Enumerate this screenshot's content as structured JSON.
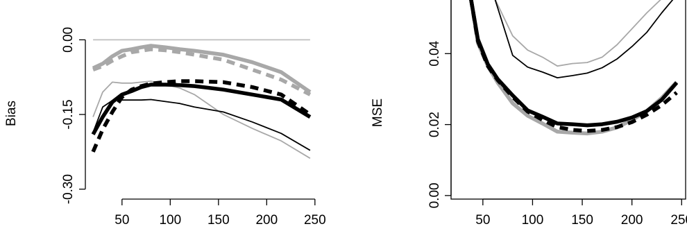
{
  "chart_data": [
    {
      "type": "line",
      "title": "",
      "xlabel": "",
      "ylabel": "Bias",
      "xlim": [
        12,
        253
      ],
      "ylim": [
        -0.32,
        0.08
      ],
      "xticks": [
        50,
        100,
        150,
        200,
        250
      ],
      "xtick_labels": [
        "50",
        "100",
        "150",
        "200",
        "250"
      ],
      "yticks": [
        -0.3,
        -0.15,
        0.0
      ],
      "ytick_labels": [
        "-0.30",
        "-0.15",
        "0.00"
      ],
      "grid": false,
      "series": [
        {
          "style": "reference",
          "color": "#bebebe",
          "dash": "",
          "weight": "thin",
          "x": [
            20,
            245
          ],
          "y": [
            0.0,
            0.0
          ]
        },
        {
          "style": "thin-grey-solid",
          "color": "#a8a8a8",
          "dash": "",
          "weight": "thin",
          "x": [
            20,
            30,
            40,
            50,
            60,
            70,
            80,
            95,
            110,
            125,
            155,
            185,
            215,
            245
          ],
          "y": [
            -0.155,
            -0.105,
            -0.085,
            -0.087,
            -0.087,
            -0.085,
            -0.083,
            -0.09,
            -0.097,
            -0.11,
            -0.15,
            -0.178,
            -0.203,
            -0.238
          ]
        },
        {
          "style": "thin-black-solid",
          "color": "#000000",
          "dash": "",
          "weight": "thin",
          "x": [
            20,
            30,
            40,
            50,
            60,
            70,
            80,
            95,
            110,
            125,
            155,
            185,
            215,
            245
          ],
          "y": [
            -0.186,
            -0.135,
            -0.122,
            -0.121,
            -0.121,
            -0.121,
            -0.12,
            -0.124,
            -0.128,
            -0.135,
            -0.145,
            -0.165,
            -0.188,
            -0.222
          ]
        },
        {
          "style": "thick-grey-solid",
          "color": "#a8a8a8",
          "dash": "",
          "weight": "thick",
          "x": [
            20,
            30,
            40,
            50,
            60,
            70,
            80,
            95,
            110,
            125,
            155,
            185,
            215,
            245
          ],
          "y": [
            -0.057,
            -0.048,
            -0.033,
            -0.022,
            -0.019,
            -0.015,
            -0.012,
            -0.015,
            -0.019,
            -0.022,
            -0.03,
            -0.045,
            -0.065,
            -0.105
          ]
        },
        {
          "style": "thick-grey-dashed",
          "color": "#a8a8a8",
          "dash": "12 8",
          "weight": "thick",
          "x": [
            20,
            30,
            40,
            50,
            60,
            70,
            80,
            95,
            110,
            125,
            155,
            185,
            215,
            245
          ],
          "y": [
            -0.06,
            -0.053,
            -0.042,
            -0.033,
            -0.025,
            -0.022,
            -0.019,
            -0.021,
            -0.025,
            -0.03,
            -0.04,
            -0.06,
            -0.08,
            -0.11
          ]
        },
        {
          "style": "thick-black-solid",
          "color": "#000000",
          "dash": "",
          "weight": "thick",
          "x": [
            20,
            30,
            40,
            50,
            60,
            70,
            80,
            95,
            110,
            125,
            155,
            185,
            215,
            245
          ],
          "y": [
            -0.19,
            -0.155,
            -0.125,
            -0.11,
            -0.103,
            -0.095,
            -0.09,
            -0.09,
            -0.091,
            -0.093,
            -0.1,
            -0.11,
            -0.12,
            -0.155
          ]
        },
        {
          "style": "thick-black-dashed",
          "color": "#000000",
          "dash": "12 8",
          "weight": "thick",
          "x": [
            20,
            30,
            40,
            50,
            60,
            70,
            80,
            95,
            110,
            125,
            155,
            185,
            215,
            245
          ],
          "y": [
            -0.225,
            -0.18,
            -0.145,
            -0.115,
            -0.1,
            -0.093,
            -0.088,
            -0.085,
            -0.083,
            -0.083,
            -0.085,
            -0.095,
            -0.11,
            -0.15
          ]
        }
      ]
    },
    {
      "type": "line",
      "title": "",
      "xlabel": "",
      "ylabel": "MSE",
      "xlim": [
        18,
        254
      ],
      "ylim": [
        -0.001,
        0.0555
      ],
      "xticks": [
        50,
        100,
        150,
        200,
        250
      ],
      "xtick_labels": [
        "50",
        "100",
        "150",
        "200",
        "250"
      ],
      "yticks": [
        0.0,
        0.02,
        0.04
      ],
      "ytick_labels": [
        "0.00",
        "0.02",
        "0.04"
      ],
      "grid": false,
      "series": [
        {
          "style": "thin-grey-solid",
          "color": "#a8a8a8",
          "dash": "",
          "weight": "thin",
          "x": [
            62,
            80,
            95,
            110,
            125,
            140,
            155,
            170,
            185,
            200,
            215,
            230
          ],
          "y": [
            0.0555,
            0.045,
            0.041,
            0.039,
            0.0365,
            0.0372,
            0.0375,
            0.039,
            0.0425,
            0.047,
            0.0515,
            0.0555
          ]
        },
        {
          "style": "thin-black-solid",
          "color": "#000000",
          "dash": "",
          "weight": "thin",
          "x": [
            62,
            80,
            95,
            110,
            125,
            140,
            155,
            170,
            185,
            200,
            215,
            230,
            242
          ],
          "y": [
            0.0555,
            0.0395,
            0.0362,
            0.0348,
            0.0332,
            0.0338,
            0.0345,
            0.036,
            0.0385,
            0.042,
            0.046,
            0.0515,
            0.0555
          ]
        },
        {
          "style": "thick-grey-solid",
          "color": "#a8a8a8",
          "dash": "",
          "weight": "thick",
          "x": [
            38,
            45,
            55,
            65,
            80,
            95,
            110,
            125,
            140,
            155,
            170,
            185,
            200,
            215,
            230,
            245
          ],
          "y": [
            0.0555,
            0.043,
            0.0365,
            0.0318,
            0.026,
            0.0225,
            0.0203,
            0.018,
            0.0177,
            0.0175,
            0.018,
            0.0192,
            0.0213,
            0.0238,
            0.0275,
            0.032
          ]
        },
        {
          "style": "thick-black-dashed",
          "color": "#000000",
          "dash": "12 8",
          "weight": "thick",
          "x": [
            38,
            45,
            55,
            65,
            80,
            95,
            110,
            125,
            140,
            155,
            170,
            185,
            200,
            215,
            230,
            245
          ],
          "y": [
            0.0555,
            0.0435,
            0.0365,
            0.0325,
            0.0278,
            0.0237,
            0.0213,
            0.0193,
            0.0185,
            0.0182,
            0.0185,
            0.0193,
            0.0207,
            0.0228,
            0.0255,
            0.029
          ]
        },
        {
          "style": "thick-black-solid",
          "color": "#000000",
          "dash": "",
          "weight": "thick",
          "x": [
            38,
            45,
            55,
            65,
            80,
            95,
            110,
            125,
            140,
            155,
            170,
            185,
            200,
            215,
            230,
            245
          ],
          "y": [
            0.0555,
            0.044,
            0.037,
            0.0328,
            0.0282,
            0.024,
            0.0222,
            0.0203,
            0.0201,
            0.0198,
            0.0201,
            0.0208,
            0.022,
            0.0238,
            0.027,
            0.0318
          ]
        }
      ]
    }
  ]
}
